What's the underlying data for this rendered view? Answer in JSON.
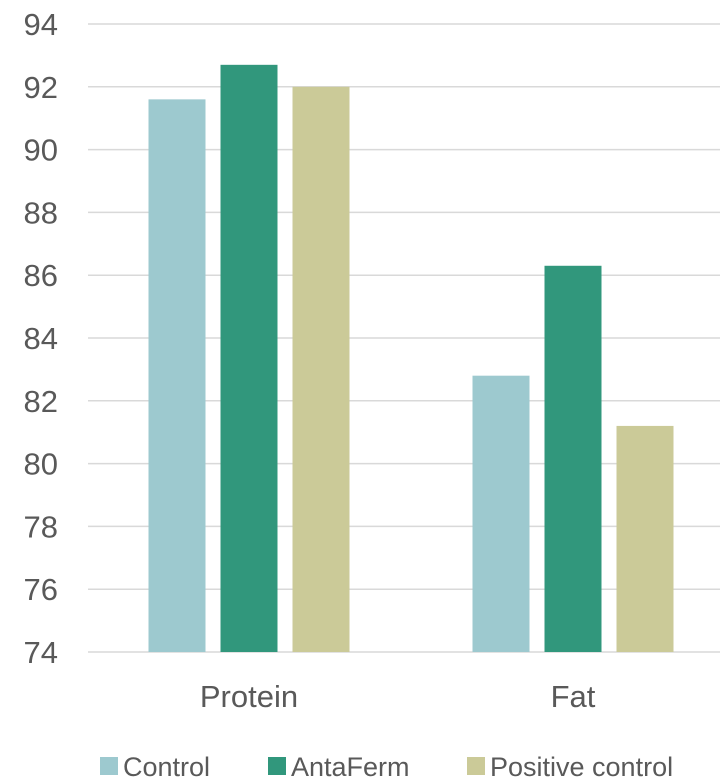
{
  "chart_data": {
    "type": "bar",
    "categories": [
      "Protein",
      "Fat"
    ],
    "series": [
      {
        "name": "Control",
        "values": [
          91.6,
          82.8
        ],
        "color": "#9dc9cf"
      },
      {
        "name": "AntaFerm",
        "values": [
          92.7,
          86.3
        ],
        "color": "#31977c"
      },
      {
        "name": "Positive control",
        "values": [
          92.0,
          81.2
        ],
        "color": "#cbca98"
      }
    ],
    "ylim": [
      74,
      94
    ],
    "yticks": [
      74,
      76,
      78,
      80,
      82,
      84,
      86,
      88,
      90,
      92,
      94
    ],
    "grid": true,
    "legend": "bottom",
    "title": "",
    "xlabel": "",
    "ylabel": ""
  }
}
